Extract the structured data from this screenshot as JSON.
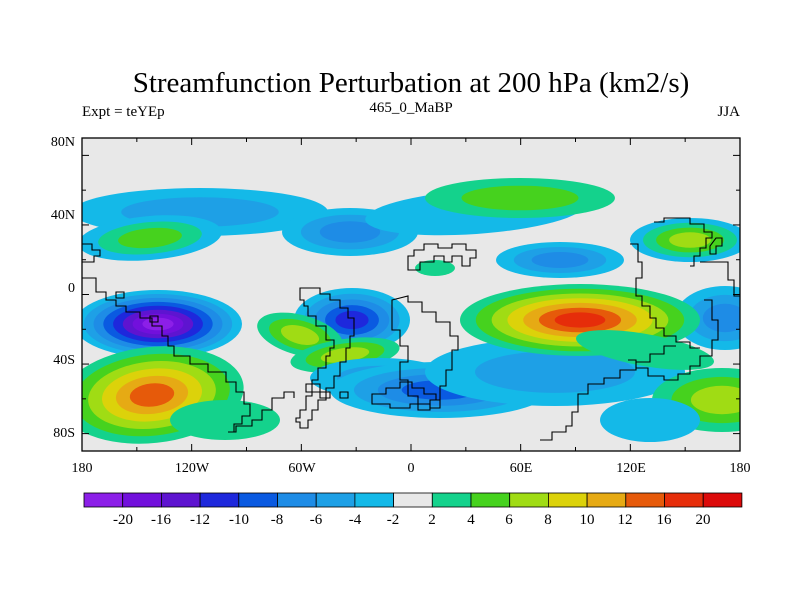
{
  "chart_data": {
    "type": "heatmap",
    "title": "Streamfunction Perturbation at 200 hPa (km2/s)",
    "subtitle_left": "Expt = teYEp",
    "subtitle_center": "465_0_MaBP",
    "subtitle_right": "JJA",
    "x_ticks": [
      "180",
      "120W",
      "60W",
      "0",
      "60E",
      "120E",
      "180"
    ],
    "x_tick_values": [
      -180,
      -120,
      -60,
      0,
      60,
      120,
      180
    ],
    "y_ticks": [
      "80N",
      "40N",
      "0",
      "40S",
      "80S"
    ],
    "y_tick_values": [
      80,
      40,
      0,
      -40,
      -80
    ],
    "xlim": [
      -180,
      180
    ],
    "ylim": [
      -90,
      90
    ],
    "colorbar_labels": [
      "-20",
      "-16",
      "-12",
      "-10",
      "-8",
      "-6",
      "-4",
      "-2",
      "2",
      "4",
      "6",
      "8",
      "10",
      "12",
      "16",
      "20"
    ],
    "colorbar_colors": [
      "#8C1FE8",
      "#7210DC",
      "#5E14D0",
      "#1E28DC",
      "#0A5AE1",
      "#1E8CE6",
      "#1EA0E6",
      "#14B9E8",
      "#E8E8E8",
      "#14D28C",
      "#46D21E",
      "#A0DC14",
      "#DCD20A",
      "#E6AA14",
      "#E65A0A",
      "#E62D0A",
      "#DC0A0A"
    ],
    "background_color": "#E8E8E8"
  }
}
